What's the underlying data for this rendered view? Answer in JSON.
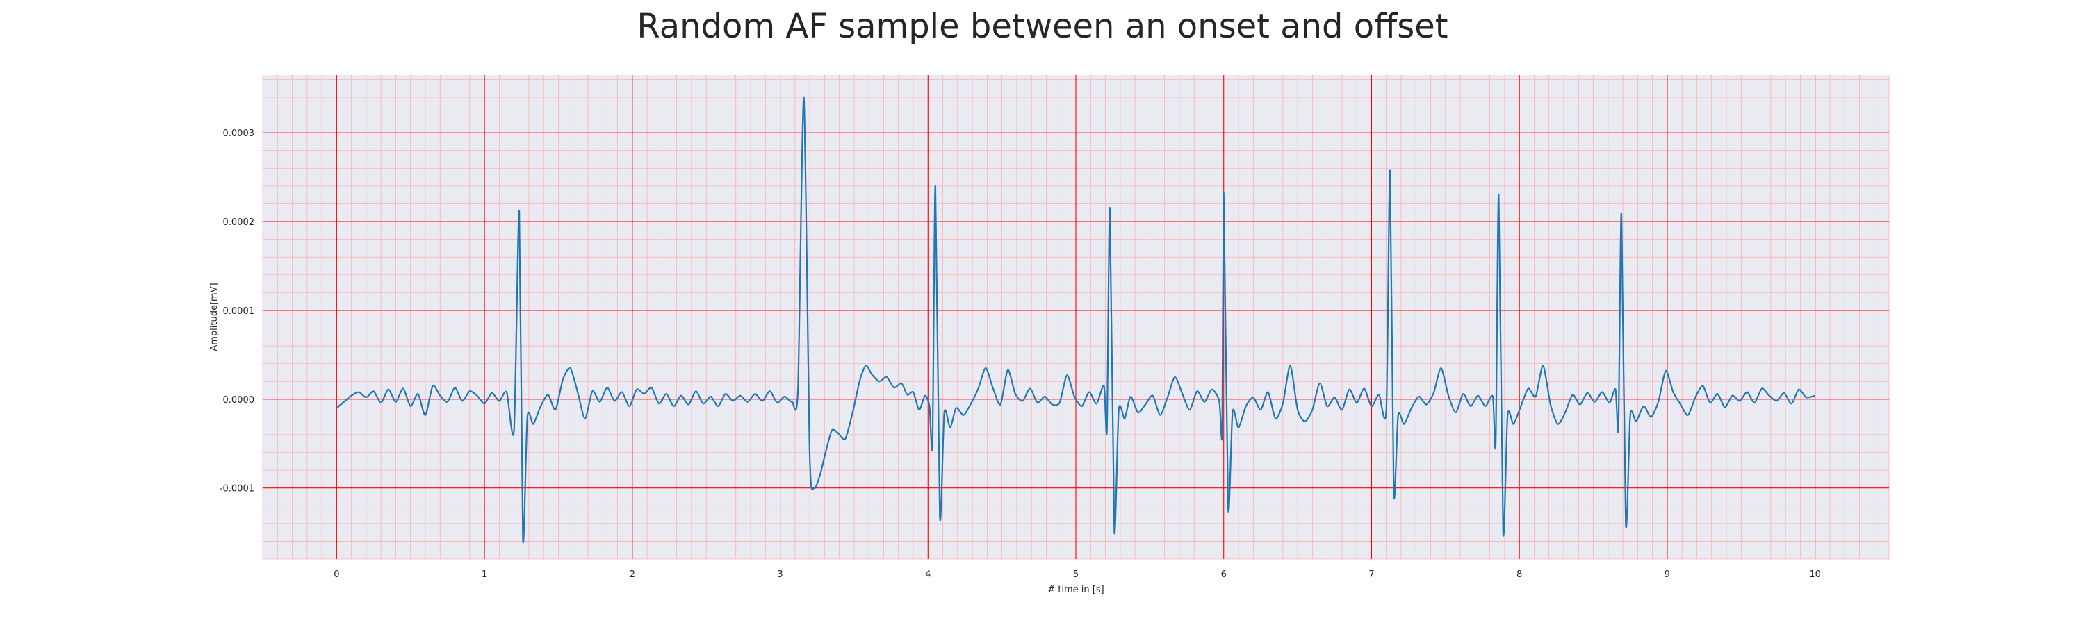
{
  "chart_data": {
    "type": "line",
    "title": "Random AF sample between an onset and offset",
    "xlabel": "# time in [s]",
    "ylabel": "Amplitude[mV]",
    "xlim": [
      -0.5,
      10.5
    ],
    "ylim": [
      -0.00018,
      0.000365
    ],
    "x_ticks": [
      0,
      1,
      2,
      3,
      4,
      5,
      6,
      7,
      8,
      9,
      10
    ],
    "x_tick_labels": [
      "0",
      "1",
      "2",
      "3",
      "4",
      "5",
      "6",
      "7",
      "8",
      "9",
      "10"
    ],
    "y_ticks": [
      -0.0001,
      0.0,
      0.0001,
      0.0002,
      0.0003
    ],
    "y_tick_labels": [
      "-0.0001",
      "0.0000",
      "0.0001",
      "0.0002",
      "0.0003"
    ],
    "grid": {
      "major": true,
      "minor": true,
      "major_color": "#ff0000",
      "minor_color": "#ffb0b0"
    },
    "background_color": "#eaeaf2",
    "line_color": "#1f77b4",
    "series": [
      {
        "values": [
          [
            0.0,
            -1e-05
          ],
          [
            0.05,
            -3e-06
          ],
          [
            0.1,
            4e-06
          ],
          [
            0.15,
            8e-06
          ],
          [
            0.2,
            2e-06
          ],
          [
            0.25,
            9e-06
          ],
          [
            0.3,
            -4e-06
          ],
          [
            0.35,
            1.1e-05
          ],
          [
            0.4,
            -3e-06
          ],
          [
            0.45,
            1.2e-05
          ],
          [
            0.5,
            -8e-06
          ],
          [
            0.55,
            6e-06
          ],
          [
            0.6,
            -1.8e-05
          ],
          [
            0.65,
            1.5e-05
          ],
          [
            0.7,
            4e-06
          ],
          [
            0.75,
            -3e-06
          ],
          [
            0.8,
            1.3e-05
          ],
          [
            0.85,
            -2e-06
          ],
          [
            0.9,
            9e-06
          ],
          [
            0.95,
            4e-06
          ],
          [
            1.0,
            -5e-06
          ],
          [
            1.05,
            7e-06
          ],
          [
            1.1,
            -2e-06
          ],
          [
            1.15,
            8e-06
          ],
          [
            1.2,
            -3.5e-05
          ],
          [
            1.235,
            0.000212
          ],
          [
            1.26,
            -0.000158
          ],
          [
            1.29,
            -2e-05
          ],
          [
            1.33,
            -2.8e-05
          ],
          [
            1.38,
            -8e-06
          ],
          [
            1.43,
            5e-06
          ],
          [
            1.48,
            -1.2e-05
          ],
          [
            1.53,
            2.2e-05
          ],
          [
            1.58,
            3.5e-05
          ],
          [
            1.63,
            8e-06
          ],
          [
            1.68,
            -2.2e-05
          ],
          [
            1.73,
            9e-06
          ],
          [
            1.78,
            -3e-06
          ],
          [
            1.83,
            1.3e-05
          ],
          [
            1.88,
            -2e-06
          ],
          [
            1.93,
            8e-06
          ],
          [
            1.98,
            -8e-06
          ],
          [
            2.03,
            1.1e-05
          ],
          [
            2.08,
            6e-06
          ],
          [
            2.13,
            1.3e-05
          ],
          [
            2.18,
            -5e-06
          ],
          [
            2.23,
            6e-06
          ],
          [
            2.28,
            -8e-06
          ],
          [
            2.33,
            4e-06
          ],
          [
            2.38,
            -6e-06
          ],
          [
            2.43,
            9e-06
          ],
          [
            2.48,
            -5e-06
          ],
          [
            2.53,
            3e-06
          ],
          [
            2.58,
            -8e-06
          ],
          [
            2.63,
            6e-06
          ],
          [
            2.68,
            -2e-06
          ],
          [
            2.73,
            4e-06
          ],
          [
            2.78,
            -3e-06
          ],
          [
            2.83,
            6e-06
          ],
          [
            2.88,
            -2e-06
          ],
          [
            2.93,
            9e-06
          ],
          [
            2.98,
            -4e-06
          ],
          [
            3.03,
            3e-06
          ],
          [
            3.08,
            -3e-06
          ],
          [
            3.12,
            1e-05
          ],
          [
            3.16,
            0.00034
          ],
          [
            3.2,
            -6.5e-05
          ],
          [
            3.23,
            -0.0001
          ],
          [
            3.27,
            -8.5e-05
          ],
          [
            3.31,
            -5.8e-05
          ],
          [
            3.35,
            -3.5e-05
          ],
          [
            3.39,
            -3.8e-05
          ],
          [
            3.44,
            -4.5e-05
          ],
          [
            3.49,
            -1.5e-05
          ],
          [
            3.54,
            2.2e-05
          ],
          [
            3.58,
            3.8e-05
          ],
          [
            3.62,
            2.8e-05
          ],
          [
            3.67,
            2e-05
          ],
          [
            3.72,
            2.5e-05
          ],
          [
            3.77,
            1.3e-05
          ],
          [
            3.82,
            1.8e-05
          ],
          [
            3.86,
            5e-06
          ],
          [
            3.9,
            8e-06
          ],
          [
            3.94,
            -1.2e-05
          ],
          [
            3.98,
            4e-06
          ],
          [
            4.01,
            -8e-06
          ],
          [
            4.03,
            -5e-05
          ],
          [
            4.05,
            0.00024
          ],
          [
            4.08,
            -0.000132
          ],
          [
            4.11,
            -1.5e-05
          ],
          [
            4.15,
            -3.2e-05
          ],
          [
            4.19,
            -1e-05
          ],
          [
            4.24,
            -1.8e-05
          ],
          [
            4.29,
            -5e-06
          ],
          [
            4.34,
            1.2e-05
          ],
          [
            4.39,
            3.5e-05
          ],
          [
            4.44,
            1.2e-05
          ],
          [
            4.49,
            -6e-06
          ],
          [
            4.54,
            3.3e-05
          ],
          [
            4.59,
            6e-06
          ],
          [
            4.64,
            -2e-06
          ],
          [
            4.69,
            1.2e-05
          ],
          [
            4.74,
            -4e-06
          ],
          [
            4.79,
            3e-06
          ],
          [
            4.84,
            -6e-06
          ],
          [
            4.89,
            -4e-06
          ],
          [
            4.94,
            2.7e-05
          ],
          [
            4.99,
            3e-06
          ],
          [
            5.04,
            -8e-06
          ],
          [
            5.09,
            8e-06
          ],
          [
            5.14,
            -5e-06
          ],
          [
            5.19,
            1.5e-05
          ],
          [
            5.21,
            -3.5e-05
          ],
          [
            5.23,
            0.000215
          ],
          [
            5.26,
            -0.000148
          ],
          [
            5.29,
            -1.2e-05
          ],
          [
            5.33,
            -2.2e-05
          ],
          [
            5.37,
            3e-06
          ],
          [
            5.42,
            -1.5e-05
          ],
          [
            5.47,
            -6e-06
          ],
          [
            5.52,
            4e-06
          ],
          [
            5.57,
            -1.8e-05
          ],
          [
            5.62,
            2e-06
          ],
          [
            5.67,
            2.5e-05
          ],
          [
            5.72,
            6e-06
          ],
          [
            5.77,
            -1.2e-05
          ],
          [
            5.82,
            9e-06
          ],
          [
            5.87,
            -3e-06
          ],
          [
            5.92,
            1.1e-05
          ],
          [
            5.97,
            -2e-06
          ],
          [
            5.99,
            -3.8e-05
          ],
          [
            6.0,
            0.000233
          ],
          [
            6.03,
            -0.000123
          ],
          [
            6.06,
            -1.4e-05
          ],
          [
            6.1,
            -3.2e-05
          ],
          [
            6.15,
            -8e-06
          ],
          [
            6.2,
            2e-06
          ],
          [
            6.25,
            -1.2e-05
          ],
          [
            6.3,
            8e-06
          ],
          [
            6.35,
            -2.2e-05
          ],
          [
            6.4,
            -5e-06
          ],
          [
            6.45,
            3.8e-05
          ],
          [
            6.5,
            -1.2e-05
          ],
          [
            6.55,
            -2.5e-05
          ],
          [
            6.6,
            -1.2e-05
          ],
          [
            6.65,
            1.8e-05
          ],
          [
            6.7,
            -8e-06
          ],
          [
            6.75,
            2e-06
          ],
          [
            6.8,
            -1.2e-05
          ],
          [
            6.85,
            1.1e-05
          ],
          [
            6.9,
            -4e-06
          ],
          [
            6.95,
            1.2e-05
          ],
          [
            7.0,
            -8e-06
          ],
          [
            7.05,
            5e-06
          ],
          [
            7.1,
            -1.2e-05
          ],
          [
            7.125,
            0.000257
          ],
          [
            7.15,
            -0.000106
          ],
          [
            7.18,
            -1.8e-05
          ],
          [
            7.22,
            -2.8e-05
          ],
          [
            7.27,
            -1e-05
          ],
          [
            7.32,
            3e-06
          ],
          [
            7.37,
            -6e-06
          ],
          [
            7.42,
            7e-06
          ],
          [
            7.47,
            3.5e-05
          ],
          [
            7.52,
            4e-06
          ],
          [
            7.57,
            -1.5e-05
          ],
          [
            7.62,
            6e-06
          ],
          [
            7.67,
            -8e-06
          ],
          [
            7.72,
            4e-06
          ],
          [
            7.77,
            -8e-06
          ],
          [
            7.82,
            3e-06
          ],
          [
            7.84,
            -5e-05
          ],
          [
            7.86,
            0.00023
          ],
          [
            7.89,
            -0.00015
          ],
          [
            7.92,
            -1.8e-05
          ],
          [
            7.96,
            -2.8e-05
          ],
          [
            8.01,
            -8e-06
          ],
          [
            8.06,
            1.2e-05
          ],
          [
            8.11,
            3e-06
          ],
          [
            8.16,
            3.8e-05
          ],
          [
            8.21,
            -6e-06
          ],
          [
            8.26,
            -2.8e-05
          ],
          [
            8.31,
            -1.5e-05
          ],
          [
            8.36,
            5e-06
          ],
          [
            8.41,
            -6e-06
          ],
          [
            8.46,
            7e-06
          ],
          [
            8.51,
            -3e-06
          ],
          [
            8.56,
            8e-06
          ],
          [
            8.61,
            -4e-06
          ],
          [
            8.65,
            1.1e-05
          ],
          [
            8.67,
            -3.2e-05
          ],
          [
            8.69,
            0.000209
          ],
          [
            8.72,
            -0.000141
          ],
          [
            8.75,
            -1.8e-05
          ],
          [
            8.79,
            -2.5e-05
          ],
          [
            8.84,
            -8e-06
          ],
          [
            8.89,
            -2e-05
          ],
          [
            8.94,
            -3e-06
          ],
          [
            8.99,
            3.2e-05
          ],
          [
            9.04,
            8e-06
          ],
          [
            9.09,
            -6e-06
          ],
          [
            9.14,
            -1.8e-05
          ],
          [
            9.19,
            2e-06
          ],
          [
            9.24,
            1.5e-05
          ],
          [
            9.29,
            -4e-06
          ],
          [
            9.34,
            6e-06
          ],
          [
            9.39,
            -9e-06
          ],
          [
            9.44,
            4e-06
          ],
          [
            9.49,
            -2e-06
          ],
          [
            9.54,
            8e-06
          ],
          [
            9.59,
            -4e-06
          ],
          [
            9.64,
            1.2e-05
          ],
          [
            9.69,
            4e-06
          ],
          [
            9.74,
            -2e-06
          ],
          [
            9.79,
            7e-06
          ],
          [
            9.84,
            -5e-06
          ],
          [
            9.89,
            1.1e-05
          ],
          [
            9.94,
            2e-06
          ],
          [
            10.0,
            4e-06
          ]
        ]
      }
    ]
  }
}
